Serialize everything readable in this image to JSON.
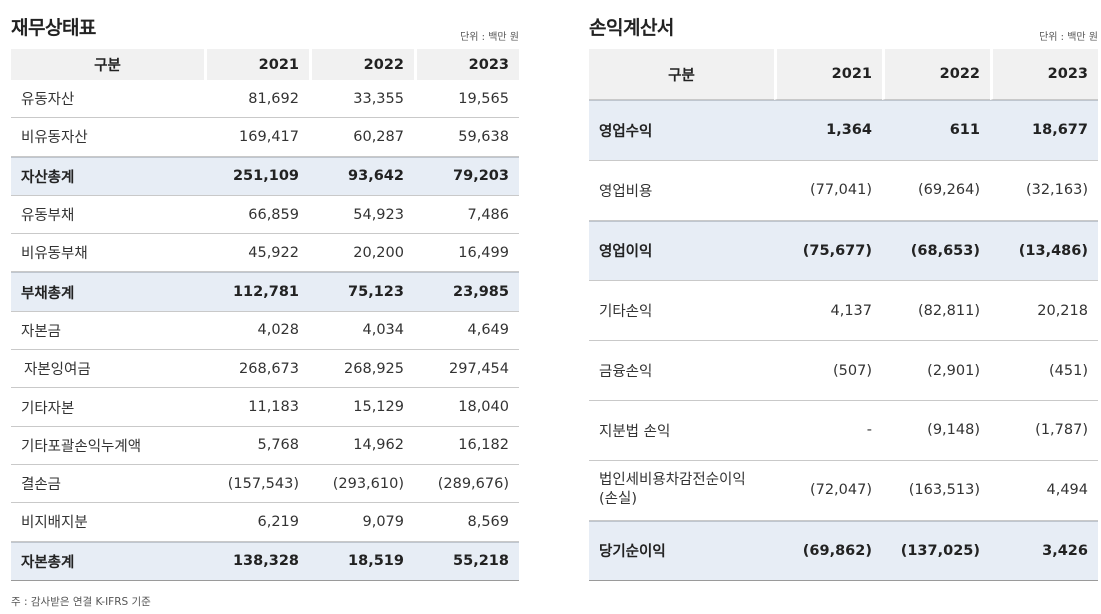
{
  "balance_sheet": {
    "title": "재무상태표",
    "unit": "단위 : 백만 원",
    "headers": [
      "구분",
      "2021",
      "2022",
      "2023"
    ],
    "rows": [
      {
        "label": "유동자산",
        "values": [
          "81,692",
          "33,355",
          "19,565"
        ],
        "total": false
      },
      {
        "label": "비유동자산",
        "values": [
          "169,417",
          "60,287",
          "59,638"
        ],
        "total": false
      },
      {
        "label": "자산총계",
        "values": [
          "251,109",
          "93,642",
          "79,203"
        ],
        "total": true
      },
      {
        "label": "유동부채",
        "values": [
          "66,859",
          "54,923",
          "7,486"
        ],
        "total": false
      },
      {
        "label": "비유동부채",
        "values": [
          "45,922",
          "20,200",
          "16,499"
        ],
        "total": false
      },
      {
        "label": "부채총계",
        "values": [
          "112,781",
          "75,123",
          "23,985"
        ],
        "total": true
      },
      {
        "label": "자본금",
        "values": [
          "4,028",
          "4,034",
          "4,649"
        ],
        "total": false
      },
      {
        "label": "자본잉여금",
        "values": [
          "268,673",
          "268,925",
          "297,454"
        ],
        "total": false,
        "indent": true
      },
      {
        "label": "기타자본",
        "values": [
          "11,183",
          "15,129",
          "18,040"
        ],
        "total": false
      },
      {
        "label": "기타포괄손익누계액",
        "values": [
          "5,768",
          "14,962",
          "16,182"
        ],
        "total": false
      },
      {
        "label": "결손금",
        "values": [
          "(157,543)",
          "(293,610)",
          "(289,676)"
        ],
        "total": false
      },
      {
        "label": "비지배지분",
        "values": [
          "6,219",
          "9,079",
          "8,569"
        ],
        "total": false
      },
      {
        "label": "자본총계",
        "values": [
          "138,328",
          "18,519",
          "55,218"
        ],
        "total": true
      }
    ]
  },
  "income_statement": {
    "title": "손익계산서",
    "unit": "단위 : 백만 원",
    "headers": [
      "구분",
      "2021",
      "2022",
      "2023"
    ],
    "rows": [
      {
        "label": "영업수익",
        "values": [
          "1,364",
          "611",
          "18,677"
        ],
        "total": true
      },
      {
        "label": "영업비용",
        "values": [
          "(77,041)",
          "(69,264)",
          "(32,163)"
        ],
        "total": false
      },
      {
        "label": "영업이익",
        "values": [
          "(75,677)",
          "(68,653)",
          "(13,486)"
        ],
        "total": true
      },
      {
        "label": "기타손익",
        "values": [
          "4,137",
          "(82,811)",
          "20,218"
        ],
        "total": false
      },
      {
        "label": "금융손익",
        "values": [
          "(507)",
          "(2,901)",
          "(451)"
        ],
        "total": false
      },
      {
        "label": "지분법 손익",
        "values": [
          "-",
          "(9,148)",
          "(1,787)"
        ],
        "total": false
      },
      {
        "label": "법인세비용차감전순이익\n(손실)",
        "values": [
          "(72,047)",
          "(163,513)",
          "4,494"
        ],
        "total": false
      },
      {
        "label": "당기순이익",
        "values": [
          "(69,862)",
          "(137,025)",
          "3,426"
        ],
        "total": true
      }
    ]
  },
  "footnote": "주 : 감사받은 연결 K-IFRS 기준"
}
